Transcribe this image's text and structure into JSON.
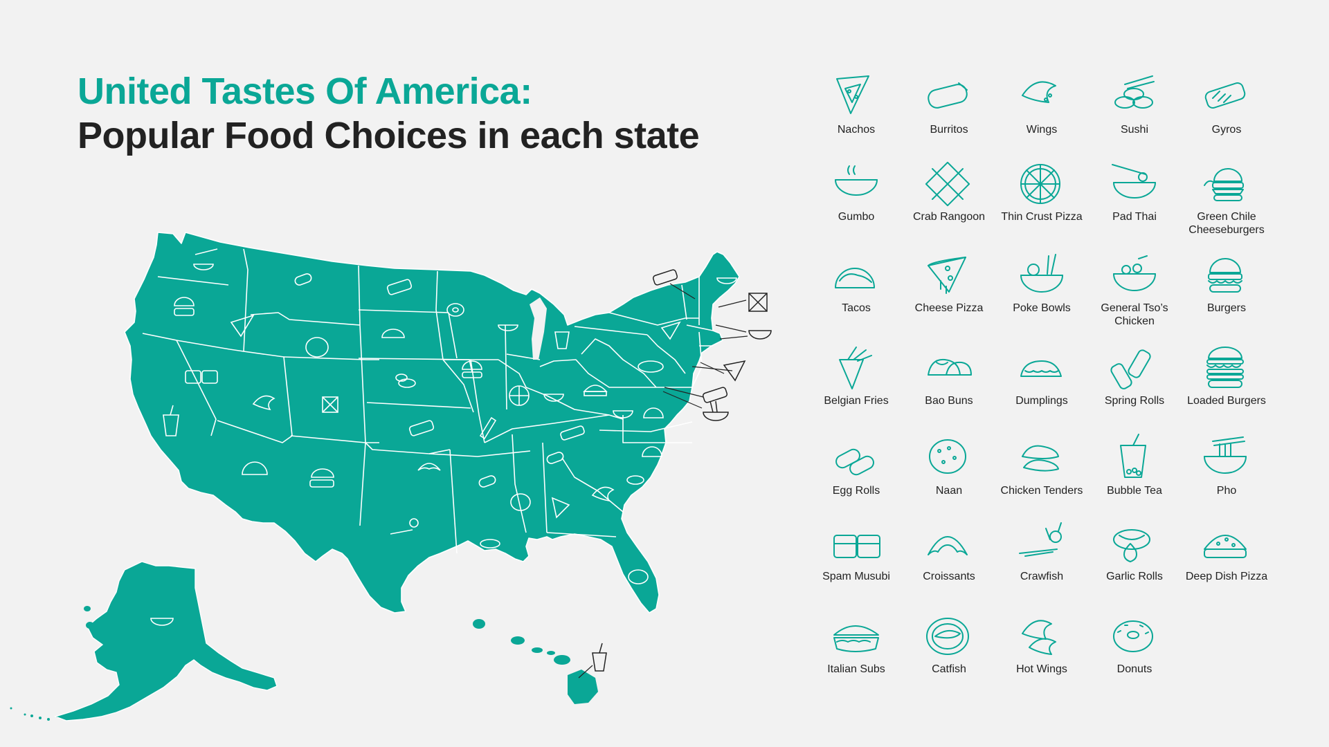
{
  "title": {
    "line1": "United Tastes Of America:",
    "line2": "Popular Food Choices in each state"
  },
  "colors": {
    "accent": "#0aa796",
    "map_fill": "#0aa796",
    "map_border": "#ffffff",
    "text": "#222222",
    "background": "#f2f2f2"
  },
  "legend": [
    {
      "label": "Nachos",
      "icon": "nachos-icon"
    },
    {
      "label": "Burritos",
      "icon": "burrito-icon"
    },
    {
      "label": "Wings",
      "icon": "wings-icon"
    },
    {
      "label": "Sushi",
      "icon": "sushi-icon"
    },
    {
      "label": "Gyros",
      "icon": "gyro-icon"
    },
    {
      "label": "Gumbo",
      "icon": "gumbo-icon"
    },
    {
      "label": "Crab Rangoon",
      "icon": "crab-rangoon-icon"
    },
    {
      "label": "Thin Crust Pizza",
      "icon": "thin-pizza-icon"
    },
    {
      "label": "Pad Thai",
      "icon": "pad-thai-icon"
    },
    {
      "label": "Green Chile Cheeseburgers",
      "icon": "cheeseburger-icon"
    },
    {
      "label": "Tacos",
      "icon": "taco-icon"
    },
    {
      "label": "Cheese Pizza",
      "icon": "pizza-slice-icon"
    },
    {
      "label": "Poke Bowls",
      "icon": "poke-bowl-icon"
    },
    {
      "label": "General Tso’s Chicken",
      "icon": "general-tso-icon"
    },
    {
      "label": "Burgers",
      "icon": "burger-icon"
    },
    {
      "label": "Belgian Fries",
      "icon": "fries-icon"
    },
    {
      "label": "Bao Buns",
      "icon": "bao-icon"
    },
    {
      "label": "Dumplings",
      "icon": "dumpling-icon"
    },
    {
      "label": "Spring Rolls",
      "icon": "spring-roll-icon"
    },
    {
      "label": "Loaded Burgers",
      "icon": "loaded-burger-icon"
    },
    {
      "label": "Egg Rolls",
      "icon": "egg-roll-icon"
    },
    {
      "label": "Naan",
      "icon": "naan-icon"
    },
    {
      "label": "Chicken Tenders",
      "icon": "chicken-tenders-icon"
    },
    {
      "label": "Bubble Tea",
      "icon": "bubble-tea-icon"
    },
    {
      "label": "Pho",
      "icon": "pho-icon"
    },
    {
      "label": "Spam Musubi",
      "icon": "spam-musubi-icon"
    },
    {
      "label": "Croissants",
      "icon": "croissant-icon"
    },
    {
      "label": "Crawfish",
      "icon": "crawfish-icon"
    },
    {
      "label": "Garlic Rolls",
      "icon": "garlic-roll-icon"
    },
    {
      "label": "Deep Dish Pizza",
      "icon": "deep-dish-icon"
    },
    {
      "label": "Italian Subs",
      "icon": "sub-icon"
    },
    {
      "label": "Catfish",
      "icon": "catfish-icon"
    },
    {
      "label": "Hot Wings",
      "icon": "hot-wings-icon"
    },
    {
      "label": "Donuts",
      "icon": "donut-icon"
    }
  ],
  "states": [
    {
      "state": "WA",
      "food": "Pad Thai"
    },
    {
      "state": "OR",
      "food": "Burgers"
    },
    {
      "state": "CA",
      "food": "Bubble Tea"
    },
    {
      "state": "NV",
      "food": "Spam Musubi"
    },
    {
      "state": "ID",
      "food": "Cheese Pizza"
    },
    {
      "state": "MT",
      "food": "Egg Rolls"
    },
    {
      "state": "WY",
      "food": "Naan"
    },
    {
      "state": "UT",
      "food": "Wings"
    },
    {
      "state": "AZ",
      "food": "Tacos"
    },
    {
      "state": "CO",
      "food": "Crab Rangoon"
    },
    {
      "state": "NM",
      "food": "Green Chile Cheeseburgers"
    },
    {
      "state": "ND",
      "food": "Gyros"
    },
    {
      "state": "SD",
      "food": "Dumplings"
    },
    {
      "state": "NE",
      "food": "Sushi"
    },
    {
      "state": "KS",
      "food": "Gyros"
    },
    {
      "state": "OK",
      "food": "Croissants"
    },
    {
      "state": "TX",
      "food": "Crawfish"
    },
    {
      "state": "MN",
      "food": "Donuts"
    },
    {
      "state": "IA",
      "food": "Burgers"
    },
    {
      "state": "MO",
      "food": "Belgian Fries"
    },
    {
      "state": "AR",
      "food": "Egg Rolls"
    },
    {
      "state": "LA",
      "food": "Sushi"
    },
    {
      "state": "WI",
      "food": "Pad Thai"
    },
    {
      "state": "IL",
      "food": "Thin Crust Pizza"
    },
    {
      "state": "MI",
      "food": "Bubble Tea"
    },
    {
      "state": "IN",
      "food": "Poke Bowls"
    },
    {
      "state": "OH",
      "food": "Deep Dish Pizza"
    },
    {
      "state": "KY",
      "food": "Gyros"
    },
    {
      "state": "TN",
      "food": "Egg Rolls"
    },
    {
      "state": "MS",
      "food": "Catfish"
    },
    {
      "state": "AL",
      "food": "Nachos"
    },
    {
      "state": "GA",
      "food": "Wings"
    },
    {
      "state": "FL",
      "food": "Garlic Rolls"
    },
    {
      "state": "SC",
      "food": "Sushi"
    },
    {
      "state": "NC",
      "food": "Tacos"
    },
    {
      "state": "VA",
      "food": "General Tso’s Chicken"
    },
    {
      "state": "WV",
      "food": "Tacos"
    },
    {
      "state": "PA",
      "food": "Italian Subs"
    },
    {
      "state": "NY",
      "food": "Cheese Pizza"
    },
    {
      "state": "ME",
      "food": "Gumbo"
    },
    {
      "state": "VT",
      "food": "Gyros"
    },
    {
      "state": "NH",
      "food": "Crab Rangoon"
    },
    {
      "state": "MA",
      "food": "General Tso’s Chicken"
    },
    {
      "state": "NJ",
      "food": "Cheese Pizza"
    },
    {
      "state": "MD",
      "food": "Gyros"
    },
    {
      "state": "DE",
      "food": "Pho"
    },
    {
      "state": "AK",
      "food": "Gumbo"
    },
    {
      "state": "HI",
      "food": "Bubble Tea"
    }
  ]
}
